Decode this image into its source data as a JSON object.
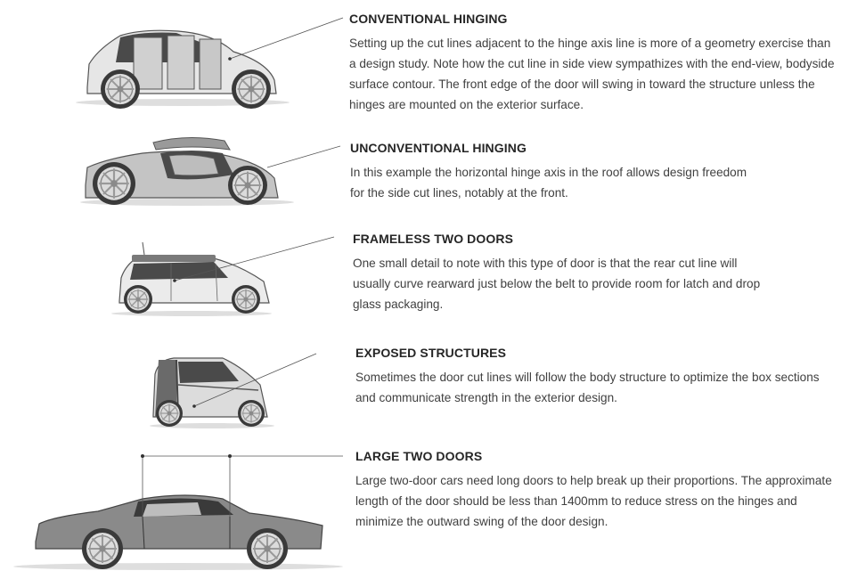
{
  "sections": [
    {
      "title": "CONVENTIONAL HINGING",
      "text": "Setting up the cut lines adjacent to the hinge axis line is more of a geometry exercise than a design study. Note how the cut line in side view sympathizes with the end-view, bodyside surface contour. The front edge of the door will swing in toward the structure unless the hinges are mounted on the exterior surface."
    },
    {
      "title": "UNCONVENTIONAL HINGING",
      "text": "In this example the horizontal hinge axis in the roof allows design freedom for the side cut lines, notably at the front."
    },
    {
      "title": "FRAMELESS TWO DOORS",
      "text": "One small detail to note with this type of door is that the rear cut line will usually curve rearward just below the belt to provide room for latch and drop glass packaging."
    },
    {
      "title": "EXPOSED STRUCTURES",
      "text": "Sometimes the door cut lines will follow the body structure to optimize the box sections and communicate strength in the exterior design."
    },
    {
      "title": "LARGE TWO DOORS",
      "text": "Large two-door cars need long doors to help break up their proportions. The approximate length of the door should be less than 1400mm to reduce stress on the hinges and minimize the outward swing of the door design."
    }
  ],
  "colors": {
    "body_light": "#e6e6e6",
    "body_mid": "#c4c4c4",
    "body_dark": "#7a7a7a",
    "glass": "#4a4a4a",
    "line": "#555555"
  }
}
